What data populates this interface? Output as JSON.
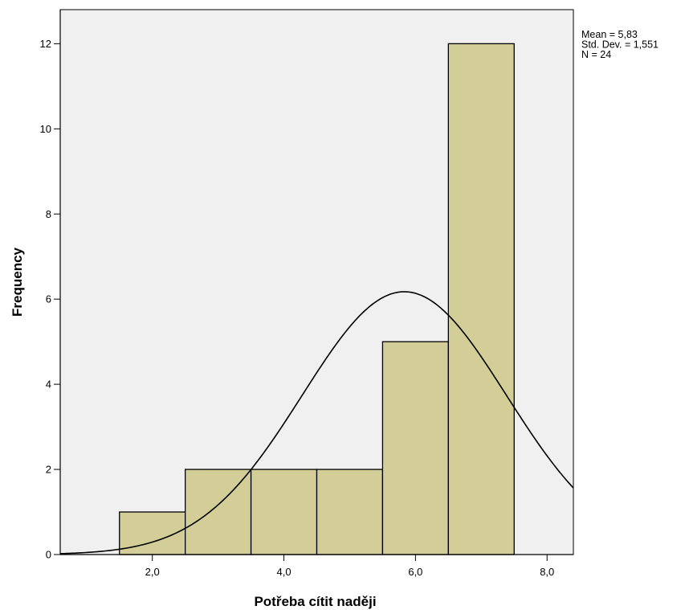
{
  "colors": {
    "plot_background": "#F0F0F0",
    "bar_fill": "#D3CE97",
    "bar_stroke": "#000000",
    "curve": "#000000"
  },
  "chart_data": {
    "type": "bar",
    "subtype": "histogram",
    "xlabel": "Potřeba cítit naději",
    "ylabel": "Frequency",
    "xlim": [
      0.6,
      8.4
    ],
    "ylim": [
      0,
      12.8
    ],
    "x_ticks": [
      2,
      4,
      6,
      8
    ],
    "x_tick_labels": [
      "2,0",
      "4,0",
      "6,0",
      "8,0"
    ],
    "y_ticks": [
      0,
      2,
      4,
      6,
      8,
      10,
      12
    ],
    "y_tick_labels": [
      "0",
      "2",
      "4",
      "6",
      "8",
      "10",
      "12"
    ],
    "bins": [
      {
        "start": 1.5,
        "end": 2.5,
        "value": 1
      },
      {
        "start": 2.5,
        "end": 3.5,
        "value": 2
      },
      {
        "start": 3.5,
        "end": 4.5,
        "value": 2
      },
      {
        "start": 4.5,
        "end": 5.5,
        "value": 2
      },
      {
        "start": 5.5,
        "end": 6.5,
        "value": 5
      },
      {
        "start": 6.5,
        "end": 7.5,
        "value": 12
      }
    ],
    "normal_curve": {
      "mean": 5.83,
      "std": 1.551,
      "n": 24,
      "bin_width": 1
    },
    "grid": false,
    "legend_position": "top-right",
    "stats_lines": [
      "Mean = 5,83",
      "Std. Dev. = 1,551",
      "N = 24"
    ]
  }
}
